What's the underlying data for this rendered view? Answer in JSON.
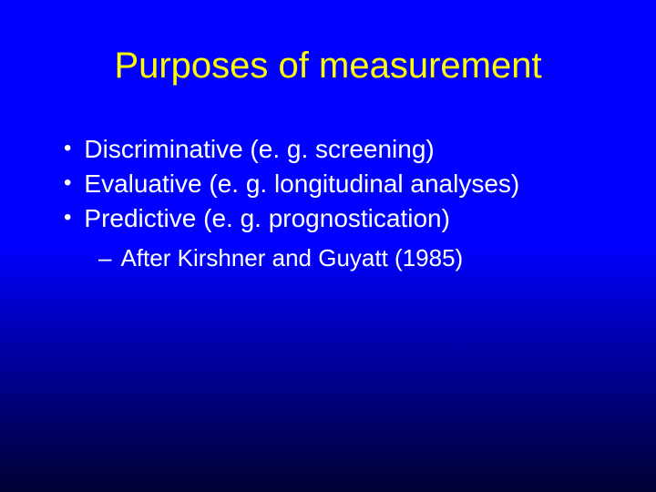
{
  "slide": {
    "title": "Purposes of measurement",
    "title_color": "#ffff00",
    "title_fontsize": 40,
    "bullets": [
      {
        "text": "Discriminative (e. g. screening)"
      },
      {
        "text": "Evaluative (e. g. longitudinal analyses)"
      },
      {
        "text": "Predictive (e. g. prognostication)"
      }
    ],
    "sub_bullets": [
      {
        "text": "After Kirshner and Guyatt (1985)"
      }
    ],
    "bullet_marker": "•",
    "sub_marker": "–",
    "text_color": "#ffffff",
    "bullet_fontsize": 28,
    "sub_fontsize": 26,
    "background_gradient_top": "#0000ff",
    "background_gradient_bottom": "#000033"
  }
}
